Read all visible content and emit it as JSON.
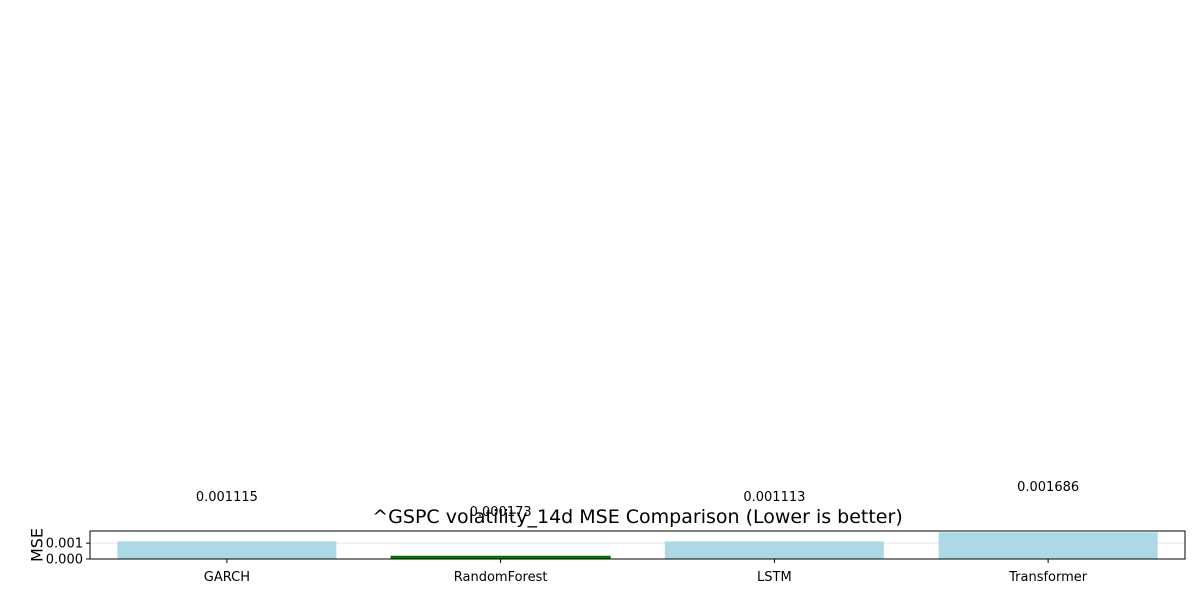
{
  "chart_data": {
    "type": "bar",
    "title": "^GSPC volatility_14d MSE Comparison (Lower is better)",
    "xlabel": "",
    "ylabel": "MSE",
    "categories": [
      "GARCH",
      "RandomForest",
      "LSTM",
      "Transformer"
    ],
    "values": [
      0.001115,
      0.000173,
      0.001113,
      0.001686
    ],
    "value_labels": [
      "0.001115",
      "0.000173",
      "0.001113",
      "0.001686"
    ],
    "ylim": [
      0,
      0.00177
    ],
    "yticks": [
      0.0,
      0.001
    ],
    "ytick_labels": [
      "0.000",
      "0.001"
    ],
    "grid": "horizontal",
    "colors": {
      "default_bar": "#add8e6",
      "best_bar": "#008000",
      "best_bar_edge": "#006400",
      "grid": "#e6e6e6",
      "axis": "#000000"
    },
    "highlight_index": 1
  }
}
